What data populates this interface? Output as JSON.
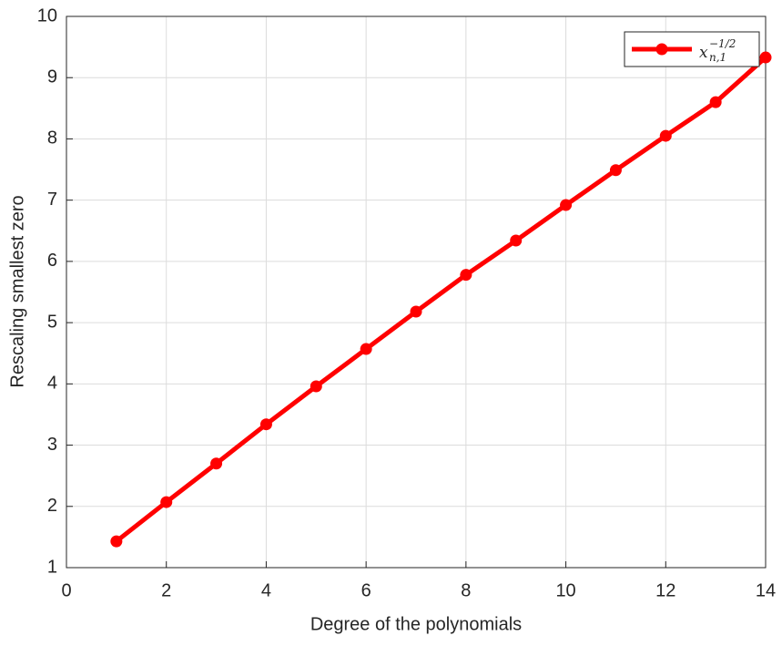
{
  "chart_data": {
    "type": "line",
    "x_label": "Degree of the polynomials",
    "y_label": "Rescaling smallest zero",
    "x": [
      1,
      2,
      3,
      4,
      5,
      6,
      7,
      8,
      9,
      10,
      11,
      12,
      13,
      14
    ],
    "series": [
      {
        "name": {
          "base": "x",
          "subscript": "n,1",
          "superscript": "−1/2"
        },
        "color": "#ff0000",
        "values": [
          1.43,
          2.07,
          2.7,
          3.34,
          3.96,
          4.57,
          5.18,
          5.78,
          6.34,
          6.92,
          7.49,
          8.05,
          8.6,
          9.33
        ]
      }
    ],
    "xlim": [
      0,
      14
    ],
    "xticks": [
      0,
      2,
      4,
      6,
      8,
      10,
      12,
      14
    ],
    "ylim": [
      1,
      10
    ],
    "yticks": [
      1,
      2,
      3,
      4,
      5,
      6,
      7,
      8,
      9,
      10
    ],
    "grid": true,
    "legend": "northeast"
  }
}
